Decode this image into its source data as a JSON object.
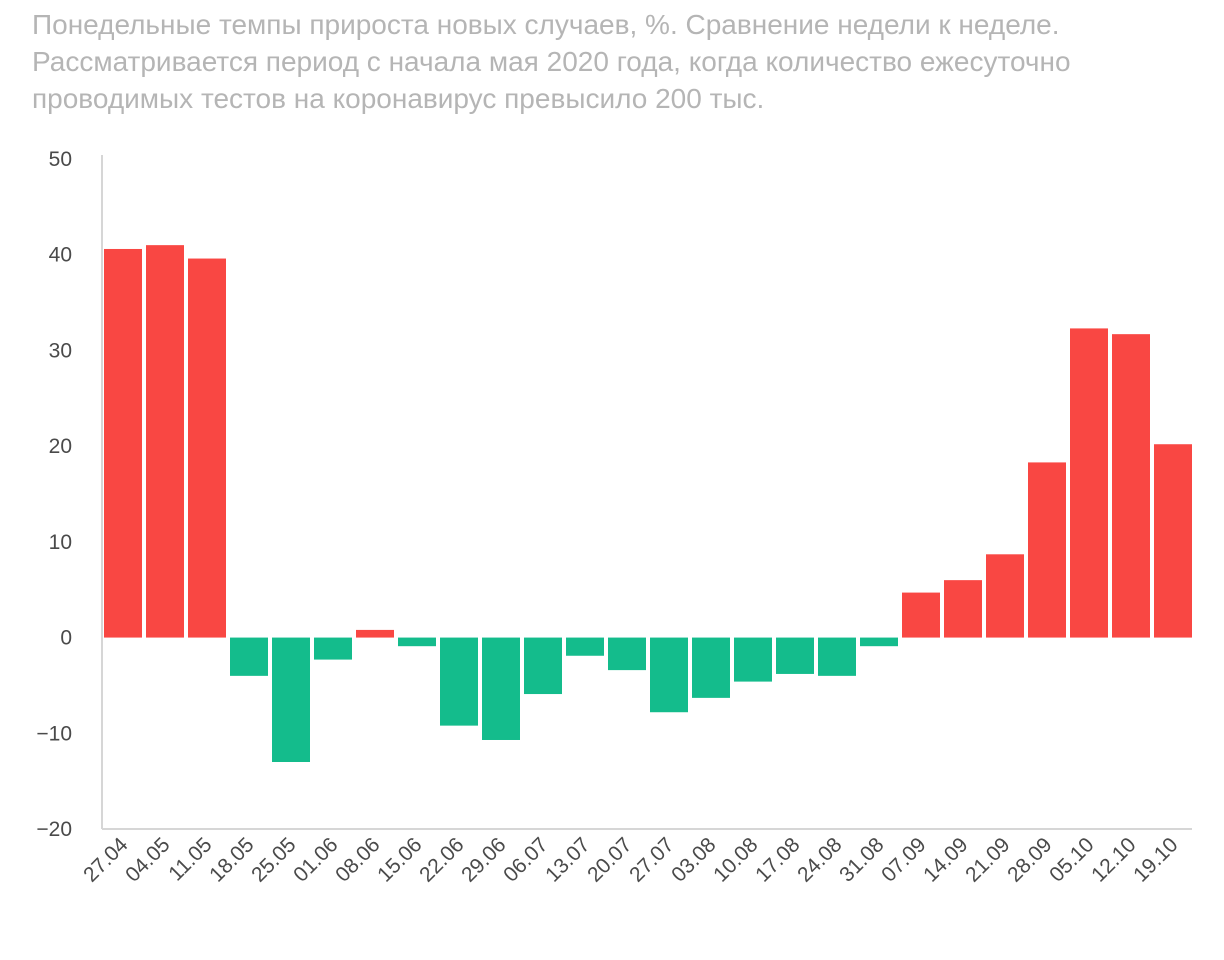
{
  "chart_data": {
    "type": "bar",
    "title": "Понедельные темпы прироста новых случаев, %. Сравнение недели к неделе. Рассматривается период с начала мая 2020 года, когда количество ежесуточно проводимых тестов на коронавирус превысило 200 тыс.",
    "xlabel": "",
    "ylabel": "",
    "ylim": [
      -20,
      50
    ],
    "yticks": [
      50,
      40,
      30,
      20,
      10,
      0,
      -10,
      -20
    ],
    "ytick_labels": [
      "50",
      "40",
      "30",
      "20",
      "10",
      "0",
      "−10",
      "−20"
    ],
    "grid": false,
    "legend": "none",
    "categories": [
      "27.04",
      "04.05",
      "11.05",
      "18.05",
      "25.05",
      "01.06",
      "08.06",
      "15.06",
      "22.06",
      "29.06",
      "06.07",
      "13.07",
      "20.07",
      "27.07",
      "03.08",
      "10.08",
      "17.08",
      "24.08",
      "31.08",
      "07.09",
      "14.09",
      "21.09",
      "28.09",
      "05.10",
      "12.10",
      "19.10"
    ],
    "values": [
      40.6,
      41.0,
      39.6,
      -4.0,
      -13.0,
      -2.3,
      0.8,
      -0.9,
      -9.2,
      -10.7,
      -5.9,
      -1.9,
      -3.4,
      -7.8,
      -6.3,
      -4.6,
      -3.8,
      -4.0,
      -0.9,
      4.7,
      6.0,
      8.7,
      18.3,
      32.3,
      31.7,
      20.2
    ],
    "colors": {
      "positive": "#f94743",
      "negative": "#14bc8c"
    }
  }
}
